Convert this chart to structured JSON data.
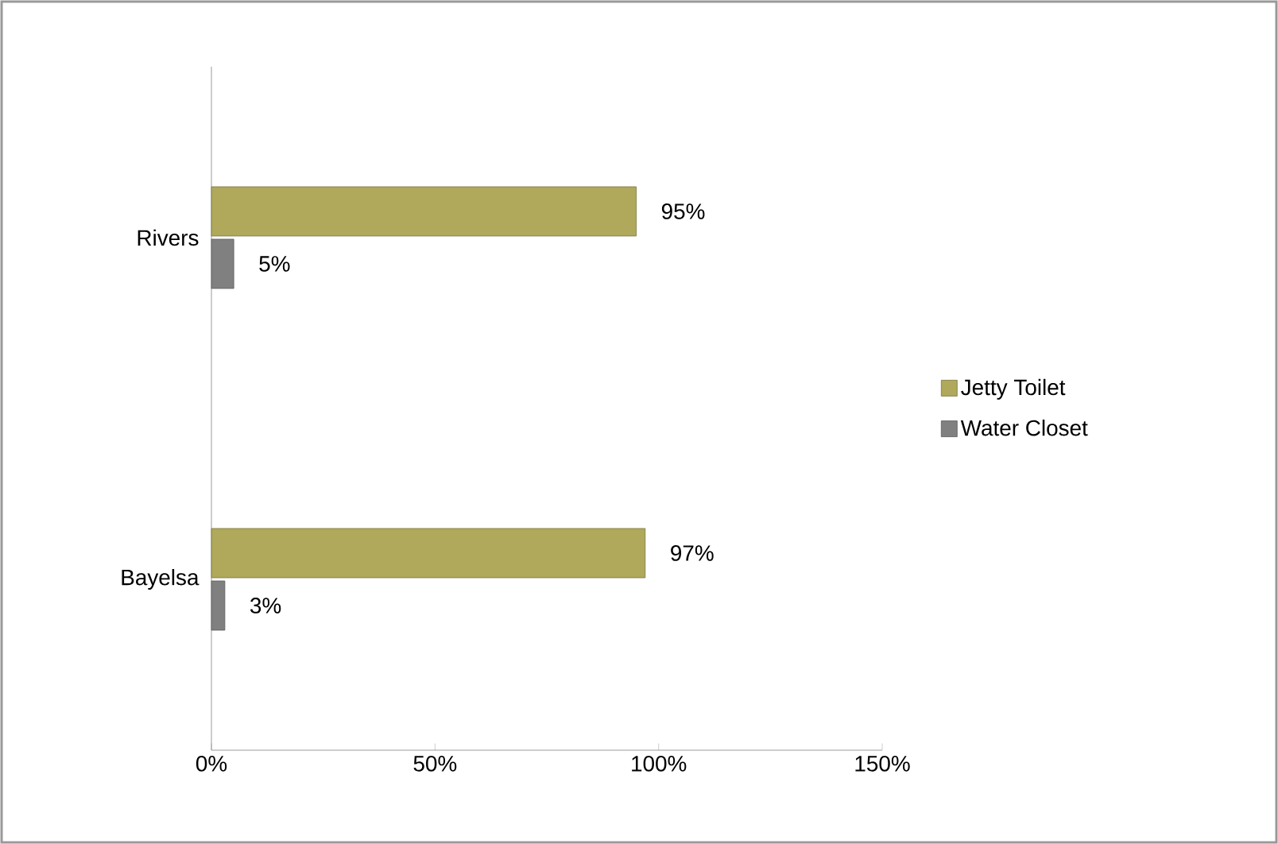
{
  "chart_data": {
    "type": "bar",
    "orientation": "horizontal",
    "categories": [
      "Rivers",
      "Bayelsa"
    ],
    "series": [
      {
        "name": "Jetty Toilet",
        "color": "#b0a85a",
        "values": [
          95,
          97
        ],
        "value_labels": [
          "95%",
          "97%"
        ]
      },
      {
        "name": "Water Closet",
        "color": "#808080",
        "values": [
          5,
          3
        ],
        "value_labels": [
          "5%",
          "3%"
        ]
      }
    ],
    "xlim": [
      0,
      150
    ],
    "xticks": [
      {
        "value": 0,
        "label": "0%"
      },
      {
        "value": 50,
        "label": "50%"
      },
      {
        "value": 100,
        "label": "100%"
      },
      {
        "value": 150,
        "label": "150%"
      }
    ],
    "grid": false,
    "legend": "right"
  }
}
